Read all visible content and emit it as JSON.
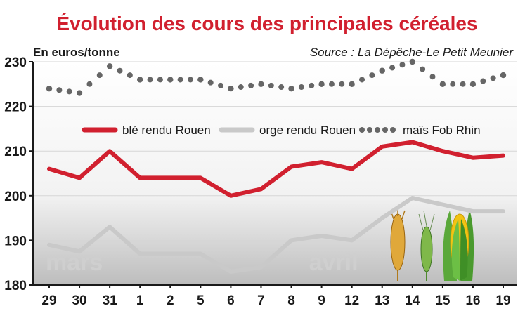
{
  "chart_data": {
    "type": "line",
    "title": "Évolution des cours des principales céréales",
    "ylabel": "En euros/tonne",
    "source": "Source : La Dépêche-Le Petit Meunier",
    "categories": [
      "29",
      "30",
      "31",
      "1",
      "2",
      "5",
      "6",
      "7",
      "8",
      "9",
      "12",
      "13",
      "14",
      "15",
      "16",
      "19"
    ],
    "month_labels": [
      {
        "label": "mars",
        "start_index": 0
      },
      {
        "label": "avril",
        "start_index": 9
      }
    ],
    "ylim": [
      180,
      230
    ],
    "yticks": [
      180,
      190,
      200,
      210,
      220,
      230
    ],
    "grid": true,
    "legend": "top-inside",
    "series": [
      {
        "name": "blé rendu Rouen",
        "style": "solid",
        "color": "#d1202f",
        "values": [
          206,
          204,
          210,
          204,
          204,
          204,
          200,
          201.5,
          206.5,
          207.5,
          206,
          211,
          212,
          210,
          208.5,
          209
        ]
      },
      {
        "name": "orge rendu Rouen",
        "style": "solid",
        "color": "#c9c9c9",
        "values": [
          189,
          187.5,
          193,
          187,
          187,
          187,
          183,
          184,
          190,
          191,
          190,
          195,
          199.5,
          198,
          196.5,
          196.5
        ]
      },
      {
        "name": "maïs Fob Rhin",
        "style": "dotted",
        "color": "#666666",
        "values": [
          224,
          223,
          229,
          226,
          226,
          226,
          224,
          225,
          224,
          225,
          225,
          228,
          230,
          225,
          225,
          227
        ]
      }
    ],
    "colors": {
      "title": "#d1202f",
      "axis": "#1a1a1a",
      "grid": "#d6d6d6",
      "month_label": "#cfcfcf"
    }
  }
}
